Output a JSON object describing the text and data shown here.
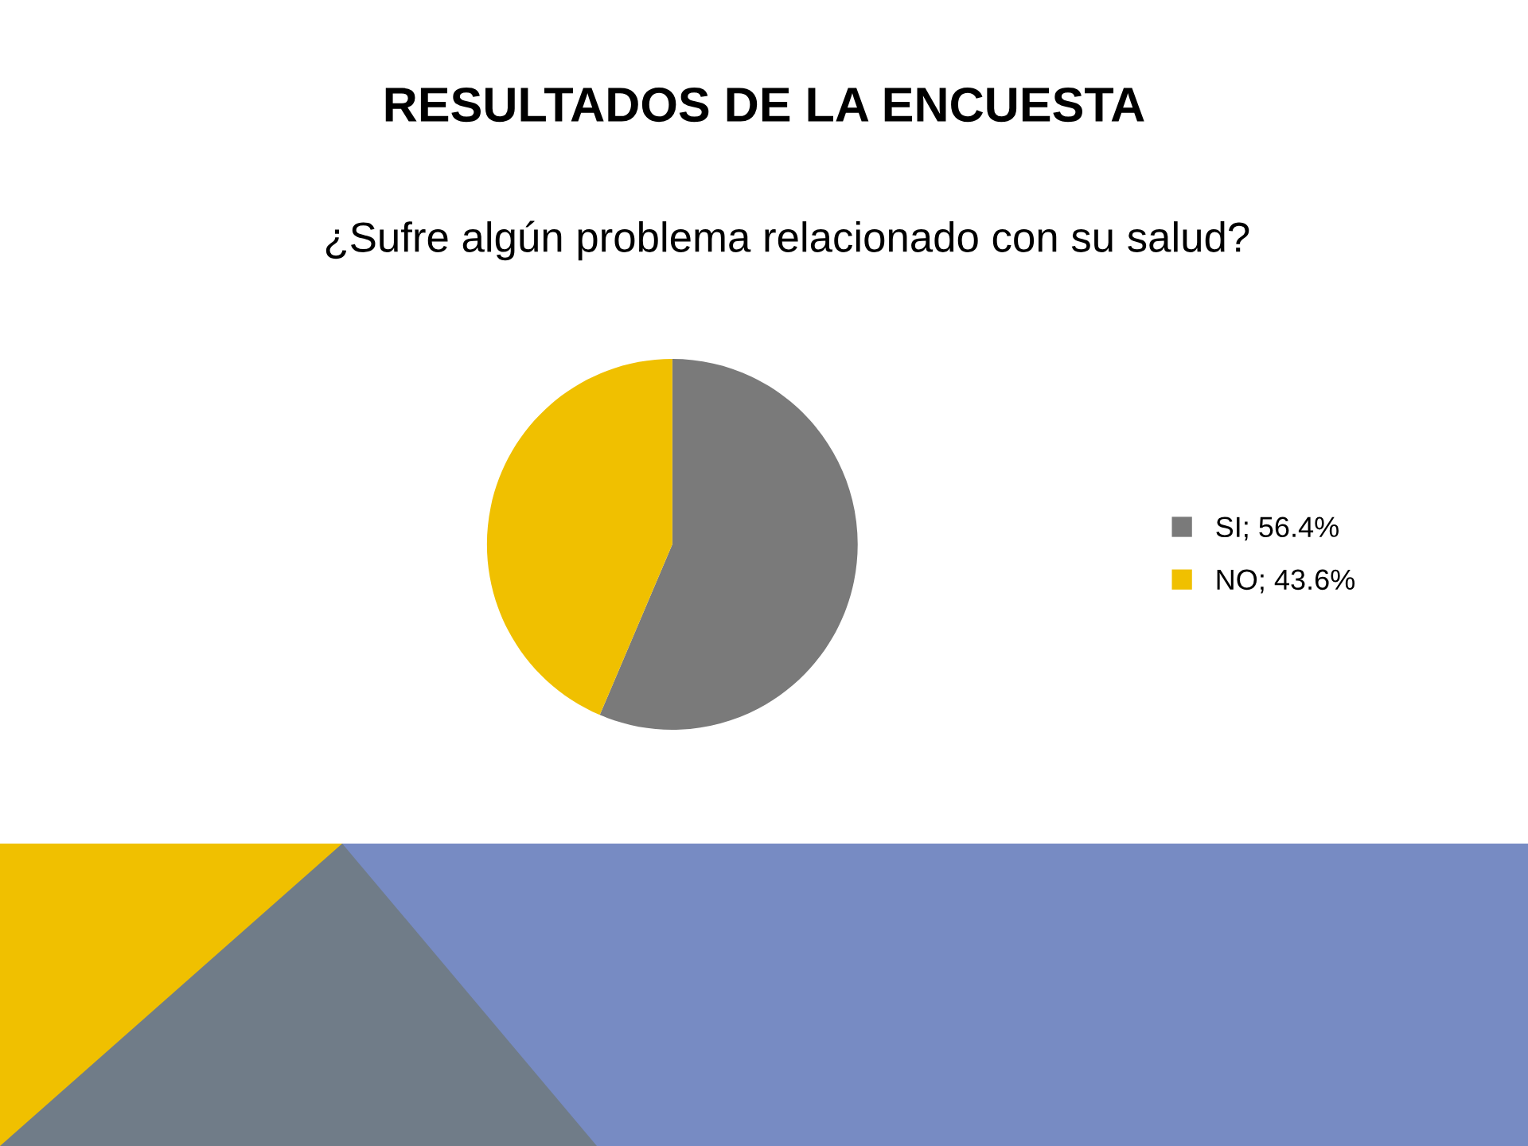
{
  "chart_data": {
    "type": "pie",
    "title": "RESULTADOS DE LA ENCUESTA",
    "subtitle": "¿Sufre algún problema relacionado con su salud?",
    "categories": [
      "SI; 56.4%",
      "NO; 43.6%"
    ],
    "values": [
      56.4,
      43.6
    ],
    "colors": [
      "#7a7a7a",
      "#f0c000"
    ],
    "legend": "right"
  }
}
